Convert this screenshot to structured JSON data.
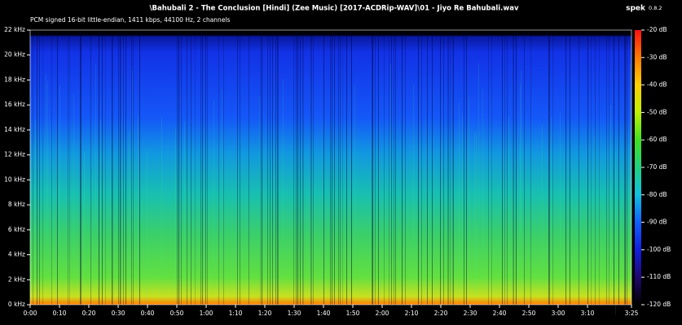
{
  "app": {
    "name": "spek",
    "version": "0.8.2"
  },
  "chart_data": {
    "type": "spectrogram",
    "title": "\\Bahubali 2 - The Conclusion [Hindi] (Zee Music) [2017-ACDRip-WAV]\\01 - Jiyo Re Bahubali.wav",
    "subtitle": "PCM signed 16-bit little-endian, 1411 kbps, 44100 Hz, 2 channels",
    "xlim": [
      0,
      205
    ],
    "xticks": [
      {
        "value": 0,
        "label": "0:00"
      },
      {
        "value": 10,
        "label": "0:10"
      },
      {
        "value": 20,
        "label": "0:20"
      },
      {
        "value": 30,
        "label": "0:30"
      },
      {
        "value": 40,
        "label": "0:40"
      },
      {
        "value": 50,
        "label": "0:50"
      },
      {
        "value": 60,
        "label": "1:00"
      },
      {
        "value": 70,
        "label": "1:10"
      },
      {
        "value": 80,
        "label": "1:20"
      },
      {
        "value": 90,
        "label": "1:30"
      },
      {
        "value": 100,
        "label": "1:40"
      },
      {
        "value": 110,
        "label": "1:50"
      },
      {
        "value": 120,
        "label": "2:00"
      },
      {
        "value": 130,
        "label": "2:10"
      },
      {
        "value": 140,
        "label": "2:20"
      },
      {
        "value": 150,
        "label": "2:30"
      },
      {
        "value": 160,
        "label": "2:40"
      },
      {
        "value": 170,
        "label": "2:50"
      },
      {
        "value": 180,
        "label": "3:00"
      },
      {
        "value": 190,
        "label": "3:10"
      },
      {
        "value": 205,
        "label": "3:25"
      }
    ],
    "ylim": [
      0,
      22
    ],
    "yticks": [
      {
        "value": 0,
        "label": "0 kHz"
      },
      {
        "value": 2,
        "label": "2 kHz"
      },
      {
        "value": 4,
        "label": "4 kHz"
      },
      {
        "value": 6,
        "label": "6 kHz"
      },
      {
        "value": 8,
        "label": "8 kHz"
      },
      {
        "value": 10,
        "label": "10 kHz"
      },
      {
        "value": 12,
        "label": "12 kHz"
      },
      {
        "value": 14,
        "label": "14 kHz"
      },
      {
        "value": 16,
        "label": "16 kHz"
      },
      {
        "value": 18,
        "label": "18 kHz"
      },
      {
        "value": 20,
        "label": "20 kHz"
      },
      {
        "value": 22,
        "label": "22 kHz"
      }
    ],
    "zlim": [
      -120,
      -20
    ],
    "zticks": [
      {
        "value": -20,
        "label": "-20 dB"
      },
      {
        "value": -30,
        "label": "-30 dB"
      },
      {
        "value": -40,
        "label": "-40 dB"
      },
      {
        "value": -50,
        "label": "-50 dB"
      },
      {
        "value": -60,
        "label": "-60 dB"
      },
      {
        "value": -70,
        "label": "-70 dB"
      },
      {
        "value": -80,
        "label": "-80 dB"
      },
      {
        "value": -90,
        "label": "-90 dB"
      },
      {
        "value": -100,
        "label": "-100 dB"
      },
      {
        "value": -110,
        "label": "-110 dB"
      },
      {
        "value": -120,
        "label": "-120 dB"
      }
    ]
  }
}
